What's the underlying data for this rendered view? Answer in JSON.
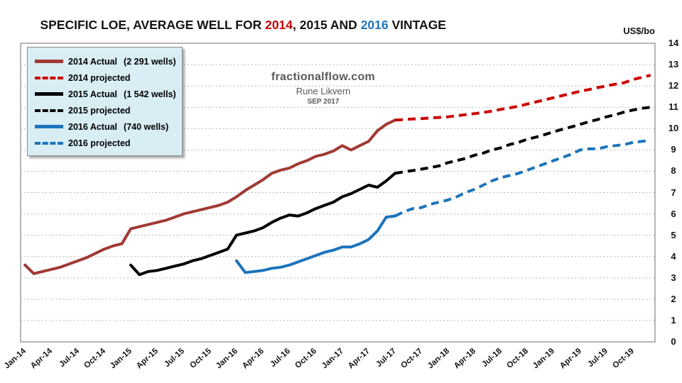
{
  "title": {
    "part1": "SPECIFIC LOE, AVERAGE WELL FOR ",
    "year1": "2014",
    "mid": ", 2015 AND ",
    "year2": "2016",
    "part3": " VINTAGE",
    "year1_color": "#c00000",
    "year2_color": "#1f75bb"
  },
  "watermark": {
    "line1": "fractionalflow.com",
    "line2": "Rune Likvern",
    "line3": "SEP 2017"
  },
  "axis_unit": "US$/bo",
  "legend": {
    "items": [
      {
        "label": "2014 Actual",
        "detail": "(2 291 wells)",
        "color": "#a03a35",
        "style": "solid"
      },
      {
        "label": "2014 projected",
        "detail": "",
        "color": "#cc0000",
        "style": "dashed"
      },
      {
        "label": "2015 Actual",
        "detail": "(1 542 wells)",
        "color": "#000000",
        "style": "solid"
      },
      {
        "label": "2015 projected",
        "detail": "",
        "color": "#000000",
        "style": "dashed"
      },
      {
        "label": "2016 Actual",
        "detail": "(740 wells)",
        "color": "#1b74bc",
        "style": "solid"
      },
      {
        "label": "2016 projected",
        "detail": "",
        "color": "#1b74bc",
        "style": "dashed"
      }
    ]
  },
  "chart_data": {
    "type": "line",
    "title": "SPECIFIC LOE, AVERAGE WELL FOR 2014, 2015 AND 2016 VINTAGE",
    "ylabel": "US$/bo",
    "x_start": "Jan-14",
    "x_end": "Dec-19",
    "months_total": 72,
    "x_tick_labels": [
      "Jan-14",
      "Apr-14",
      "Jul-14",
      "Oct-14",
      "Jan-15",
      "Apr-15",
      "Jul-15",
      "Oct-15",
      "Jan-16",
      "Apr-16",
      "Jul-16",
      "Oct-16",
      "Jan-17",
      "Apr-17",
      "Jul-17",
      "Oct-17",
      "Jan-18",
      "Apr-18",
      "Jul-18",
      "Oct-18",
      "Jan-19",
      "Apr-19",
      "Jul-19",
      "Oct-19"
    ],
    "x_tick_months": [
      0,
      3,
      6,
      9,
      12,
      15,
      18,
      21,
      24,
      27,
      30,
      33,
      36,
      39,
      42,
      45,
      48,
      51,
      54,
      57,
      60,
      63,
      66,
      69
    ],
    "ylim": [
      0,
      14
    ],
    "y_tick_step": 1,
    "y_tick_labels": [
      "0",
      "1",
      "2",
      "3",
      "4",
      "5",
      "6",
      "7",
      "8",
      "9",
      "10",
      "11",
      "12",
      "13",
      "14"
    ],
    "grid": "horizontal-dotted",
    "grid_color": "#b8b8b8",
    "frame_color": "#8f8f8f",
    "legend_position": "upper-left",
    "series": [
      {
        "name": "2014 Actual (2 291 wells)",
        "color": "#a03a35",
        "style": "solid",
        "start_month": 0,
        "values": [
          3.6,
          3.2,
          3.3,
          3.4,
          3.5,
          3.65,
          3.8,
          3.95,
          4.15,
          4.35,
          4.5,
          4.6,
          5.3,
          5.4,
          5.5,
          5.6,
          5.7,
          5.85,
          6.0,
          6.1,
          6.2,
          6.3,
          6.4,
          6.55,
          6.8,
          7.1,
          7.35,
          7.6,
          7.9,
          8.05,
          8.15,
          8.35,
          8.5,
          8.7,
          8.8,
          8.95,
          9.2,
          9.0,
          9.2,
          9.4,
          9.9,
          10.2,
          10.4
        ]
      },
      {
        "name": "2014 projected",
        "color": "#cc0000",
        "style": "dashed",
        "start_month": 42,
        "values": [
          10.4,
          10.42,
          10.45,
          10.47,
          10.5,
          10.52,
          10.55,
          10.6,
          10.65,
          10.7,
          10.75,
          10.82,
          10.9,
          10.97,
          11.05,
          11.15,
          11.25,
          11.35,
          11.45,
          11.55,
          11.65,
          11.75,
          11.83,
          11.92,
          12.0,
          12.08,
          12.15,
          12.3,
          12.4,
          12.5
        ]
      },
      {
        "name": "2015 Actual (1 542 wells)",
        "color": "#000000",
        "style": "solid",
        "start_month": 12,
        "values": [
          3.6,
          3.15,
          3.3,
          3.35,
          3.45,
          3.55,
          3.65,
          3.8,
          3.9,
          4.05,
          4.2,
          4.35,
          5.0,
          5.1,
          5.2,
          5.35,
          5.6,
          5.8,
          5.95,
          5.9,
          6.05,
          6.25,
          6.4,
          6.55,
          6.8,
          6.95,
          7.15,
          7.35,
          7.25,
          7.55,
          7.9
        ]
      },
      {
        "name": "2015 projected",
        "color": "#000000",
        "style": "dashed",
        "start_month": 42,
        "values": [
          7.9,
          7.97,
          8.03,
          8.1,
          8.17,
          8.25,
          8.4,
          8.5,
          8.6,
          8.75,
          8.85,
          9.0,
          9.1,
          9.25,
          9.35,
          9.5,
          9.6,
          9.72,
          9.85,
          9.97,
          10.08,
          10.2,
          10.32,
          10.43,
          10.55,
          10.65,
          10.77,
          10.87,
          10.95,
          11.0
        ]
      },
      {
        "name": "2016 Actual (740 wells)",
        "color": "#1b74bc",
        "style": "solid",
        "start_month": 24,
        "values": [
          3.8,
          3.25,
          3.3,
          3.35,
          3.45,
          3.5,
          3.6,
          3.75,
          3.9,
          4.05,
          4.2,
          4.3,
          4.45,
          4.45,
          4.6,
          4.8,
          5.2,
          5.85,
          5.9
        ]
      },
      {
        "name": "2016 projected",
        "color": "#1b74bc",
        "style": "dashed",
        "start_month": 42,
        "values": [
          5.9,
          6.1,
          6.25,
          6.3,
          6.45,
          6.55,
          6.65,
          6.8,
          7.0,
          7.15,
          7.35,
          7.55,
          7.7,
          7.8,
          7.9,
          8.05,
          8.2,
          8.35,
          8.5,
          8.65,
          8.8,
          9.0,
          9.05,
          9.05,
          9.15,
          9.2,
          9.25,
          9.35,
          9.4,
          9.45
        ]
      }
    ]
  }
}
